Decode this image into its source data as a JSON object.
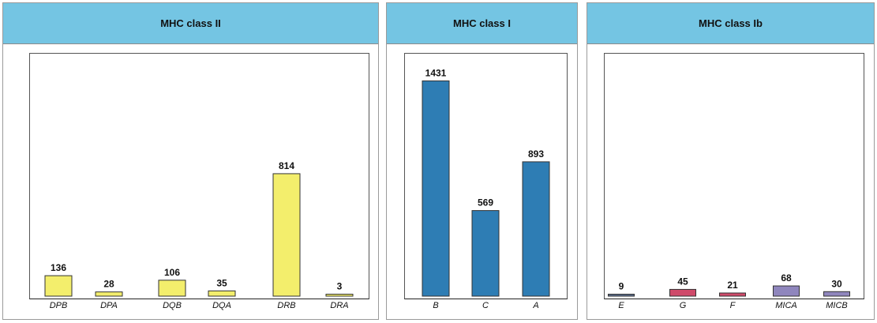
{
  "chart_data": [
    {
      "type": "bar",
      "title": "MHC class II",
      "categories": [
        "DPB",
        "DPA",
        "DQB",
        "DQA",
        "DRB",
        "DRA"
      ],
      "values": [
        136,
        28,
        106,
        35,
        814,
        3
      ],
      "ylim": [
        0,
        1650
      ],
      "color": "#f3ee6c",
      "grid": false
    },
    {
      "type": "bar",
      "title": "MHC class I",
      "categories": [
        "B",
        "C",
        "A"
      ],
      "values": [
        1431,
        569,
        893
      ],
      "ylim": [
        0,
        1650
      ],
      "color": "#2e7db4",
      "grid": false
    },
    {
      "type": "bar",
      "title": "MHC class Ib",
      "categories": [
        "E",
        "G",
        "F",
        "MICA",
        "MICB"
      ],
      "values": [
        9,
        45,
        21,
        68,
        30
      ],
      "ylim": [
        0,
        1650
      ],
      "colors": [
        "#5b6e8e",
        "#cf4a6a",
        "#cf4a6a",
        "#8f86bd",
        "#8f86bd"
      ],
      "grid": false
    }
  ]
}
